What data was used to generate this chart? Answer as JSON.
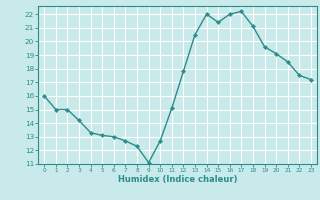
{
  "x": [
    0,
    1,
    2,
    3,
    4,
    5,
    6,
    7,
    8,
    9,
    10,
    11,
    12,
    13,
    14,
    15,
    16,
    17,
    18,
    19,
    20,
    21,
    22,
    23
  ],
  "y": [
    16,
    15,
    15,
    14.2,
    13.3,
    13.1,
    13.0,
    12.7,
    12.3,
    11.1,
    12.7,
    15.1,
    17.8,
    20.5,
    22.0,
    21.4,
    22.0,
    22.2,
    21.1,
    19.6,
    19.1,
    18.5,
    17.5,
    17.2
  ],
  "line_color": "#2e8b8b",
  "marker": "D",
  "markersize": 2.2,
  "linewidth": 1.0,
  "bg_color": "#c8eaea",
  "grid_color": "#ffffff",
  "xlabel": "Humidex (Indice chaleur)",
  "xlim": [
    -0.5,
    23.5
  ],
  "ylim": [
    11,
    22.6
  ],
  "yticks": [
    11,
    12,
    13,
    14,
    15,
    16,
    17,
    18,
    19,
    20,
    21,
    22
  ],
  "xticks": [
    0,
    1,
    2,
    3,
    4,
    5,
    6,
    7,
    8,
    9,
    10,
    11,
    12,
    13,
    14,
    15,
    16,
    17,
    18,
    19,
    20,
    21,
    22,
    23
  ],
  "tick_color": "#2e8b8b",
  "label_color": "#2e8b8b",
  "spine_color": "#2e8b8b",
  "xlabel_fontsize": 6.0,
  "xtick_fontsize": 4.2,
  "ytick_fontsize": 5.2
}
